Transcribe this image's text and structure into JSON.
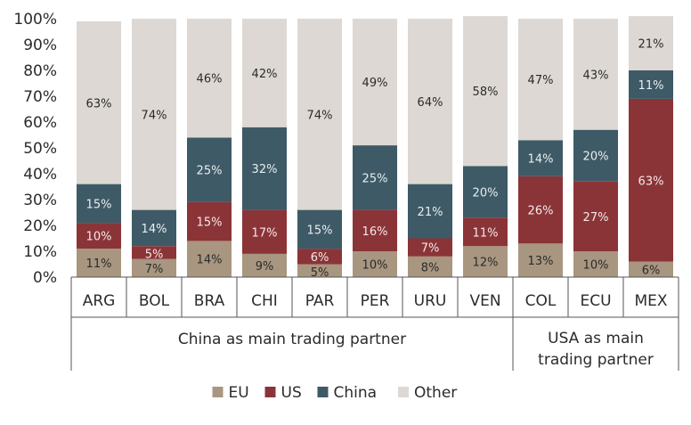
{
  "chart_data": {
    "type": "bar",
    "stacked": true,
    "percent": true,
    "title": "",
    "xlabel": "",
    "ylabel": "",
    "ylim": [
      0,
      100
    ],
    "yticks": [
      0,
      10,
      20,
      30,
      40,
      50,
      60,
      70,
      80,
      90,
      100
    ],
    "ytick_labels": [
      "0%",
      "10%",
      "20%",
      "30%",
      "40%",
      "50%",
      "60%",
      "70%",
      "80%",
      "90%",
      "100%"
    ],
    "categories": [
      "ARG",
      "BOL",
      "BRA",
      "CHI",
      "PAR",
      "PER",
      "URU",
      "VEN",
      "COL",
      "ECU",
      "MEX"
    ],
    "groups": [
      {
        "label_lines": [
          "China as main trading partner"
        ],
        "start": 0,
        "end": 7
      },
      {
        "label_lines": [
          "USA as main",
          "trading partner"
        ],
        "start": 8,
        "end": 10
      }
    ],
    "series": [
      {
        "name": "EU",
        "color": "#a89680",
        "label_color": "#2b2b2b",
        "values": [
          11,
          7,
          14,
          9,
          5,
          10,
          8,
          12,
          13,
          10,
          6
        ],
        "labels": [
          "11%",
          "7%",
          "14%",
          "9%",
          "5%",
          "10%",
          "8%",
          "12%",
          "13%",
          "10%",
          "6%"
        ]
      },
      {
        "name": "US",
        "color": "#8b3438",
        "label_color": "#f3e9e9",
        "values": [
          10,
          5,
          15,
          17,
          6,
          16,
          7,
          11,
          26,
          27,
          63
        ],
        "labels": [
          "10%",
          "5%",
          "15%",
          "17%",
          "6%",
          "16%",
          "7%",
          "11%",
          "26%",
          "27%",
          "63%"
        ]
      },
      {
        "name": "China",
        "color": "#3e5a66",
        "label_color": "#e8eef0",
        "values": [
          15,
          14,
          25,
          32,
          15,
          25,
          21,
          20,
          14,
          20,
          11
        ],
        "labels": [
          "15%",
          "14%",
          "25%",
          "32%",
          "15%",
          "25%",
          "21%",
          "20%",
          "14%",
          "20%",
          "11%"
        ]
      },
      {
        "name": "Other",
        "color": "#ddd8d3",
        "label_color": "#2b2b2b",
        "values": [
          63,
          74,
          46,
          42,
          74,
          49,
          64,
          58,
          47,
          43,
          21
        ],
        "labels": [
          "63%",
          "74%",
          "46%",
          "42%",
          "74%",
          "49%",
          "64%",
          "58%",
          "47%",
          "43%",
          "21%"
        ]
      }
    ],
    "legend_position": "bottom-center"
  }
}
